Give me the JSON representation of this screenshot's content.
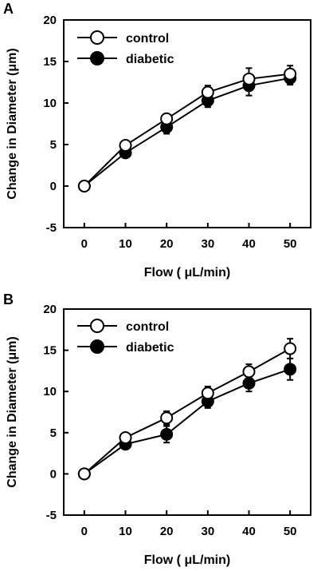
{
  "chart_data": [
    {
      "type": "line",
      "panel_label": "A",
      "xlabel": "Flow ( μL/min)",
      "ylabel": "Change in Diameter (μm)",
      "x": [
        0,
        10,
        20,
        30,
        40,
        50
      ],
      "xticks": [
        "0",
        "10",
        "20",
        "30",
        "40",
        "50"
      ],
      "xlim": [
        -5,
        55
      ],
      "yticks": [
        "-5",
        "0",
        "5",
        "10",
        "15",
        "20"
      ],
      "ylim": [
        -5,
        20
      ],
      "grid": false,
      "legend_position": "top-left",
      "series": [
        {
          "name": "control",
          "marker": "open-circle",
          "values": [
            0,
            4.9,
            8.1,
            11.3,
            12.9,
            13.5
          ],
          "error": [
            0,
            0.4,
            0.6,
            0.8,
            1.3,
            1.0
          ]
        },
        {
          "name": "diabetic",
          "marker": "filled-circle",
          "values": [
            0,
            4.0,
            7.1,
            10.3,
            12.1,
            13.0
          ],
          "error": [
            0,
            0.3,
            0.8,
            0.8,
            1.2,
            0.8
          ]
        }
      ]
    },
    {
      "type": "line",
      "panel_label": "B",
      "xlabel": "Flow ( μL/min)",
      "ylabel": "Change in Diameter (μm)",
      "x": [
        0,
        10,
        20,
        30,
        40,
        50
      ],
      "xticks": [
        "0",
        "10",
        "20",
        "30",
        "40",
        "50"
      ],
      "xlim": [
        -5,
        55
      ],
      "yticks": [
        "-5",
        "0",
        "5",
        "10",
        "15",
        "20"
      ],
      "ylim": [
        -5,
        20
      ],
      "grid": false,
      "legend_position": "top-left",
      "series": [
        {
          "name": "control",
          "marker": "open-circle",
          "values": [
            0,
            4.4,
            6.8,
            9.8,
            12.4,
            15.2
          ],
          "error": [
            0,
            0.4,
            0.8,
            0.8,
            0.9,
            1.2
          ]
        },
        {
          "name": "diabetic",
          "marker": "filled-circle",
          "values": [
            0,
            3.6,
            4.8,
            8.8,
            11.0,
            12.7
          ],
          "error": [
            0,
            0.4,
            1.0,
            0.8,
            1.0,
            1.3
          ]
        }
      ]
    }
  ]
}
